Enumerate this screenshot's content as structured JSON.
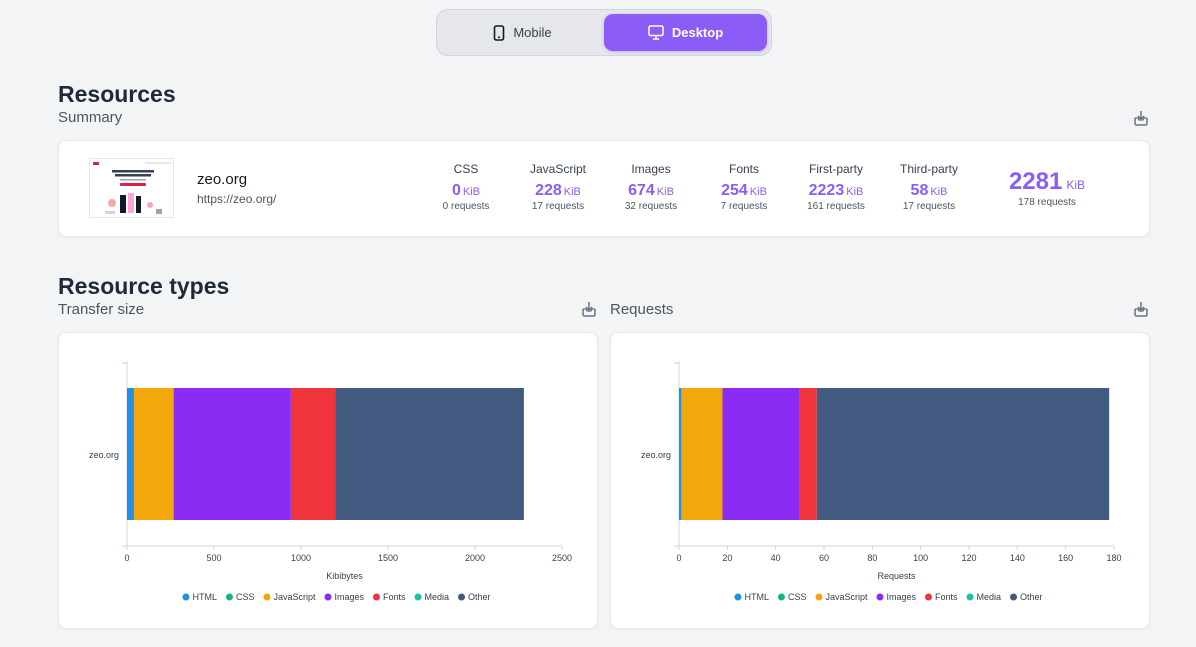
{
  "device_toggle": {
    "mobile_label": "Mobile",
    "desktop_label": "Desktop",
    "active": "Desktop"
  },
  "resources": {
    "title": "Resources",
    "subtitle": "Summary",
    "site": {
      "name": "zeo.org",
      "url": "https://zeo.org/"
    },
    "stats": [
      {
        "label": "CSS",
        "value": "0",
        "unit": "KiB",
        "requests": "0 requests"
      },
      {
        "label": "JavaScript",
        "value": "228",
        "unit": "KiB",
        "requests": "17 requests"
      },
      {
        "label": "Images",
        "value": "674",
        "unit": "KiB",
        "requests": "32 requests"
      },
      {
        "label": "Fonts",
        "value": "254",
        "unit": "KiB",
        "requests": "7 requests"
      },
      {
        "label": "First-party",
        "value": "2223",
        "unit": "KiB",
        "requests": "161 requests"
      },
      {
        "label": "Third-party",
        "value": "58",
        "unit": "KiB",
        "requests": "17 requests"
      }
    ],
    "total": {
      "value": "2281",
      "unit": "KiB",
      "requests": "178 requests"
    }
  },
  "resource_types": {
    "title": "Resource types",
    "transfer_subtitle": "Transfer size",
    "requests_subtitle": "Requests"
  },
  "colors": {
    "accent": "#8b5cf6",
    "HTML": "#1e90e6",
    "CSS": "#10b981",
    "JavaScript": "#f2a80a",
    "Images": "#8b2cf5",
    "Fonts": "#f0343c",
    "Media": "#14c4a4",
    "Other": "#435a80"
  },
  "chart_data": [
    {
      "type": "bar",
      "orientation": "horizontal",
      "stacked": true,
      "categories": [
        "zeo.org"
      ],
      "xlabel": "Kibibytes",
      "xlim": [
        0,
        2500
      ],
      "xticks": [
        0,
        500,
        1000,
        1500,
        2000,
        2500
      ],
      "legend_position": "bottom",
      "series": [
        {
          "name": "HTML",
          "values": [
            40
          ]
        },
        {
          "name": "CSS",
          "values": [
            0
          ]
        },
        {
          "name": "JavaScript",
          "values": [
            228
          ]
        },
        {
          "name": "Images",
          "values": [
            674
          ]
        },
        {
          "name": "Fonts",
          "values": [
            254
          ]
        },
        {
          "name": "Media",
          "values": [
            0
          ]
        },
        {
          "name": "Other",
          "values": [
            1085
          ]
        }
      ]
    },
    {
      "type": "bar",
      "orientation": "horizontal",
      "stacked": true,
      "categories": [
        "zeo.org"
      ],
      "xlabel": "Requests",
      "xlim": [
        0,
        180
      ],
      "xticks": [
        0,
        20,
        40,
        60,
        80,
        100,
        120,
        140,
        160,
        180
      ],
      "legend_position": "bottom",
      "series": [
        {
          "name": "HTML",
          "values": [
            1
          ]
        },
        {
          "name": "CSS",
          "values": [
            0
          ]
        },
        {
          "name": "JavaScript",
          "values": [
            17
          ]
        },
        {
          "name": "Images",
          "values": [
            32
          ]
        },
        {
          "name": "Fonts",
          "values": [
            7
          ]
        },
        {
          "name": "Media",
          "values": [
            0
          ]
        },
        {
          "name": "Other",
          "values": [
            121
          ]
        }
      ]
    }
  ]
}
